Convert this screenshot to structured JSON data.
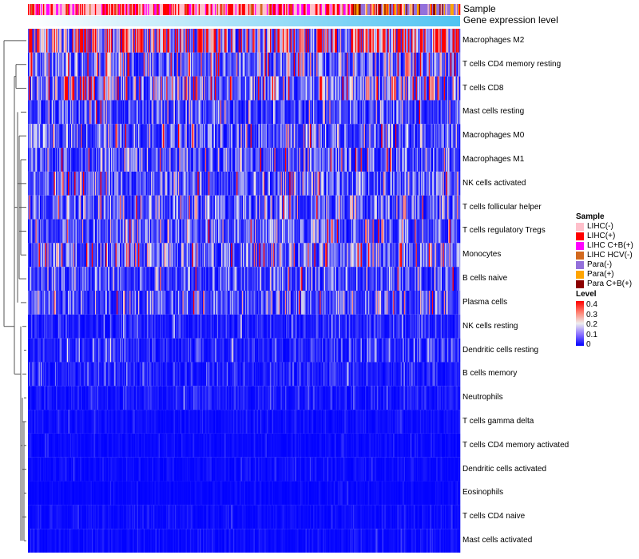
{
  "chart_data": {
    "type": "heatmap",
    "title": "",
    "top_annotations": [
      "Sample",
      "Gene expression level"
    ],
    "rows": [
      {
        "label": "Macrophages M2",
        "mean_level": 0.3
      },
      {
        "label": "T cells CD4 memory resting",
        "mean_level": 0.12
      },
      {
        "label": "T cells CD8",
        "mean_level": 0.15
      },
      {
        "label": "Mast cells resting",
        "mean_level": 0.07
      },
      {
        "label": "Macrophages M0",
        "mean_level": 0.09
      },
      {
        "label": "Macrophages M1",
        "mean_level": 0.1
      },
      {
        "label": "NK cells activated",
        "mean_level": 0.09
      },
      {
        "label": "T cells follicular helper",
        "mean_level": 0.1
      },
      {
        "label": "T cells regulatory  Tregs",
        "mean_level": 0.09
      },
      {
        "label": "Monocytes",
        "mean_level": 0.11
      },
      {
        "label": "B cells naive",
        "mean_level": 0.07
      },
      {
        "label": "Plasma cells",
        "mean_level": 0.08
      },
      {
        "label": "NK cells resting",
        "mean_level": 0.03
      },
      {
        "label": "Dendritic cells resting",
        "mean_level": 0.04
      },
      {
        "label": "B cells memory",
        "mean_level": 0.03
      },
      {
        "label": "Neutrophils",
        "mean_level": 0.02
      },
      {
        "label": "T cells gamma delta",
        "mean_level": 0.012
      },
      {
        "label": "T cells CD4 memory activated",
        "mean_level": 0.01
      },
      {
        "label": "Dendritic cells activated",
        "mean_level": 0.01
      },
      {
        "label": "Eosinophils",
        "mean_level": 0.006
      },
      {
        "label": "T cells CD4 naive",
        "mean_level": 0.01
      },
      {
        "label": "Mast cells activated",
        "mean_level": 0.01
      }
    ],
    "n_samples": 400,
    "sample_legend": {
      "title": "Sample",
      "items": [
        {
          "label": "LIHC(-)",
          "color": "#ffc0cb"
        },
        {
          "label": "LIHC(+)",
          "color": "#ff0000"
        },
        {
          "label": "LIHC C+B(+)",
          "color": "#ff00ff"
        },
        {
          "label": "LIHC HCV(-)",
          "color": "#d2691e"
        },
        {
          "label": "Para(-)",
          "color": "#9370db"
        },
        {
          "label": "Para(+)",
          "color": "#ffa500"
        },
        {
          "label": "Para C+B(+)",
          "color": "#8b0000"
        }
      ]
    },
    "level_legend": {
      "title": "Level",
      "ticks": [
        "0.4",
        "0.3",
        "0.2",
        "0.1",
        "0"
      ],
      "range": [
        0,
        0.4
      ],
      "colors": {
        "low": "#0000ff",
        "mid": "#eeeeee",
        "high": "#ff0000"
      }
    },
    "gene_expression_colors": {
      "low": "#ffffff",
      "high": "#4fc3f2"
    }
  }
}
